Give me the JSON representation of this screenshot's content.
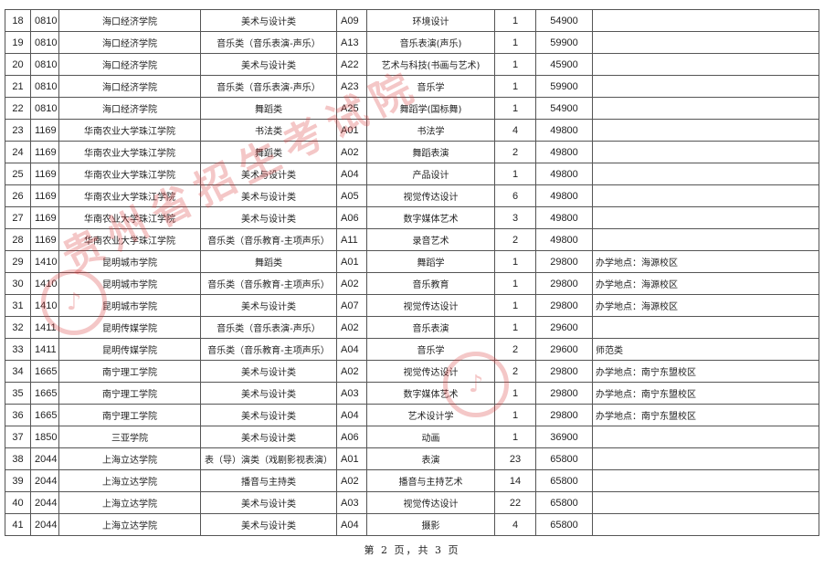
{
  "table": {
    "rows": [
      [
        "18",
        "0810",
        "海口经济学院",
        "美术与设计类",
        "A09",
        "环境设计",
        "1",
        "54900",
        ""
      ],
      [
        "19",
        "0810",
        "海口经济学院",
        "音乐类（音乐表演-声乐）",
        "A13",
        "音乐表演(声乐)",
        "1",
        "59900",
        ""
      ],
      [
        "20",
        "0810",
        "海口经济学院",
        "美术与设计类",
        "A22",
        "艺术与科技(书画与艺术)",
        "1",
        "45900",
        ""
      ],
      [
        "21",
        "0810",
        "海口经济学院",
        "音乐类（音乐表演-声乐）",
        "A23",
        "音乐学",
        "1",
        "59900",
        ""
      ],
      [
        "22",
        "0810",
        "海口经济学院",
        "舞蹈类",
        "A25",
        "舞蹈学(国标舞)",
        "1",
        "54900",
        ""
      ],
      [
        "23",
        "1169",
        "华南农业大学珠江学院",
        "书法类",
        "A01",
        "书法学",
        "4",
        "49800",
        ""
      ],
      [
        "24",
        "1169",
        "华南农业大学珠江学院",
        "舞蹈类",
        "A02",
        "舞蹈表演",
        "2",
        "49800",
        ""
      ],
      [
        "25",
        "1169",
        "华南农业大学珠江学院",
        "美术与设计类",
        "A04",
        "产品设计",
        "1",
        "49800",
        ""
      ],
      [
        "26",
        "1169",
        "华南农业大学珠江学院",
        "美术与设计类",
        "A05",
        "视觉传达设计",
        "6",
        "49800",
        ""
      ],
      [
        "27",
        "1169",
        "华南农业大学珠江学院",
        "美术与设计类",
        "A06",
        "数字媒体艺术",
        "3",
        "49800",
        ""
      ],
      [
        "28",
        "1169",
        "华南农业大学珠江学院",
        "音乐类（音乐教育-主项声乐）",
        "A11",
        "录音艺术",
        "2",
        "49800",
        ""
      ],
      [
        "29",
        "1410",
        "昆明城市学院",
        "舞蹈类",
        "A01",
        "舞蹈学",
        "1",
        "29800",
        "办学地点：海源校区"
      ],
      [
        "30",
        "1410",
        "昆明城市学院",
        "音乐类（音乐教育-主项声乐）",
        "A02",
        "音乐教育",
        "1",
        "29800",
        "办学地点：海源校区"
      ],
      [
        "31",
        "1410",
        "昆明城市学院",
        "美术与设计类",
        "A07",
        "视觉传达设计",
        "1",
        "29800",
        "办学地点：海源校区"
      ],
      [
        "32",
        "1411",
        "昆明传媒学院",
        "音乐类（音乐表演-声乐）",
        "A02",
        "音乐表演",
        "1",
        "29600",
        ""
      ],
      [
        "33",
        "1411",
        "昆明传媒学院",
        "音乐类（音乐教育-主项声乐）",
        "A04",
        "音乐学",
        "2",
        "29600",
        "师范类"
      ],
      [
        "34",
        "1665",
        "南宁理工学院",
        "美术与设计类",
        "A02",
        "视觉传达设计",
        "2",
        "29800",
        "办学地点：南宁东盟校区"
      ],
      [
        "35",
        "1665",
        "南宁理工学院",
        "美术与设计类",
        "A03",
        "数字媒体艺术",
        "1",
        "29800",
        "办学地点：南宁东盟校区"
      ],
      [
        "36",
        "1665",
        "南宁理工学院",
        "美术与设计类",
        "A04",
        "艺术设计学",
        "1",
        "29800",
        "办学地点：南宁东盟校区"
      ],
      [
        "37",
        "1850",
        "三亚学院",
        "美术与设计类",
        "A06",
        "动画",
        "1",
        "36900",
        ""
      ],
      [
        "38",
        "2044",
        "上海立达学院",
        "表（导）演类（戏剧影视表演）",
        "A01",
        "表演",
        "23",
        "65800",
        ""
      ],
      [
        "39",
        "2044",
        "上海立达学院",
        "播音与主持类",
        "A02",
        "播音与主持艺术",
        "14",
        "65800",
        ""
      ],
      [
        "40",
        "2044",
        "上海立达学院",
        "美术与设计类",
        "A03",
        "视觉传达设计",
        "22",
        "65800",
        ""
      ],
      [
        "41",
        "2044",
        "上海立达学院",
        "美术与设计类",
        "A04",
        "摄影",
        "4",
        "65800",
        ""
      ]
    ]
  },
  "footer": {
    "page_label": "第 2 页，共 3 页"
  },
  "watermark": {
    "text": "贵州省招生考试院",
    "color": "#d9383a"
  }
}
